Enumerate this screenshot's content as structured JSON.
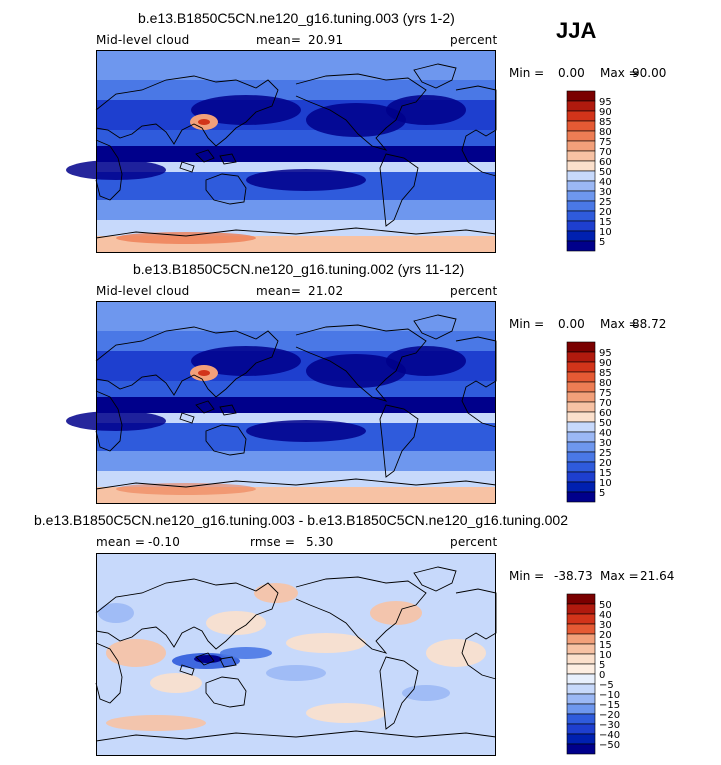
{
  "season": "JJA",
  "colors": {
    "levels_main": [
      "#00008b",
      "#0020b0",
      "#1e3fcf",
      "#2f5bdc",
      "#4a78e6",
      "#6e97ee",
      "#9bb8f5",
      "#c7d9fb",
      "#ffffff",
      "#fbe0cc",
      "#f7c2a4",
      "#f2a07a",
      "#ed7d54",
      "#e55a34",
      "#d2341a",
      "#b01a0e",
      "#7a0000"
    ],
    "levels_diff": [
      "#00008b",
      "#0020b0",
      "#1e3fcf",
      "#2f5bdc",
      "#4a78e6",
      "#6e97ee",
      "#9bb8f5",
      "#c7d9fb",
      "#e8f0fd",
      "#fdeee2",
      "#fbe0cc",
      "#f7c2a4",
      "#f2a07a",
      "#ed7d54",
      "#e55a34",
      "#d2341a",
      "#b01a0e",
      "#7a0000"
    ]
  },
  "chart_data": [
    {
      "type": "heatmap",
      "title": "b.e13.B1850C5CN.ne120_g16.tuning.003 (yrs 1-2)",
      "variable": "Mid-level cloud",
      "stat_label": "mean=",
      "stat_value": "20.91",
      "units": "percent",
      "min_label": "Min =",
      "min_value": "0.00",
      "max_label": "Max =",
      "max_value": "90.00",
      "colorbar_ticks": [
        "95",
        "90",
        "85",
        "80",
        "75",
        "70",
        "60",
        "50",
        "40",
        "30",
        "25",
        "20",
        "15",
        "10",
        "5"
      ],
      "projection": "cylindrical equidistant, centered 180"
    },
    {
      "type": "heatmap",
      "title": "b.e13.B1850C5CN.ne120_g16.tuning.002 (yrs 11-12)",
      "variable": "Mid-level cloud",
      "stat_label": "mean=",
      "stat_value": "21.02",
      "units": "percent",
      "min_label": "Min =",
      "min_value": "0.00",
      "max_label": "Max =",
      "max_value": "88.72",
      "colorbar_ticks": [
        "95",
        "90",
        "85",
        "80",
        "75",
        "70",
        "60",
        "50",
        "40",
        "30",
        "25",
        "20",
        "15",
        "10",
        "5"
      ],
      "projection": "cylindrical equidistant, centered 180"
    },
    {
      "type": "heatmap",
      "title": "b.e13.B1850C5CN.ne120_g16.tuning.003 - b.e13.B1850C5CN.ne120_g16.tuning.002",
      "variable": "",
      "stat_label": "mean =",
      "stat_value": "-0.10",
      "stat2_label": "rmse =",
      "stat2_value": "5.30",
      "units": "percent",
      "min_label": "Min =",
      "min_value": "-38.73",
      "max_label": "Max =",
      "max_value": "21.64",
      "colorbar_ticks": [
        "50",
        "40",
        "30",
        "20",
        "15",
        "10",
        "5",
        "0",
        "−5",
        "−10",
        "−15",
        "−20",
        "−30",
        "−40",
        "−50"
      ],
      "projection": "cylindrical equidistant, centered 180"
    }
  ]
}
